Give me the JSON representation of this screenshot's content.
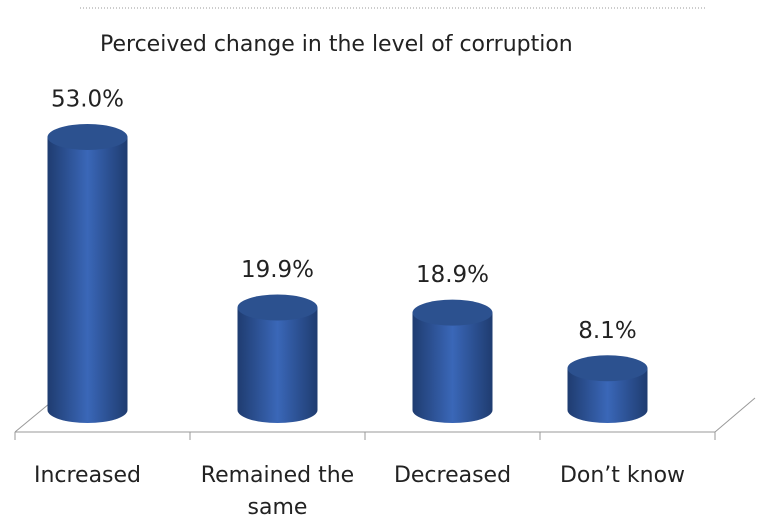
{
  "chart_data": {
    "type": "bar",
    "title": "Perceived change in the level of corruption",
    "categories": [
      "Increased",
      "Remained the same",
      "Decreased",
      "Don’t know"
    ],
    "values": [
      53.0,
      19.9,
      18.9,
      8.1
    ],
    "value_labels": [
      "53.0%",
      "19.9%",
      "18.9%",
      "8.1%"
    ],
    "color": "#3a67b8"
  }
}
